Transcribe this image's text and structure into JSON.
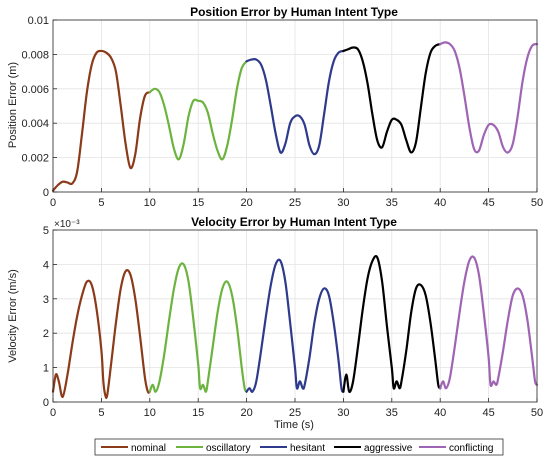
{
  "chart_data": [
    {
      "type": "line",
      "title": "Position Error by Human Intent Type",
      "xlabel": "",
      "ylabel": "Position Error (m)",
      "xlim": [
        0,
        50
      ],
      "ylim": [
        0,
        0.01
      ],
      "xticks": [
        0,
        5,
        10,
        15,
        20,
        25,
        30,
        35,
        40,
        45,
        50
      ],
      "xtick_labels": [
        "0",
        "5",
        "10",
        "15",
        "20",
        "25",
        "30",
        "35",
        "40",
        "45",
        "50"
      ],
      "yticks": [
        0,
        0.002,
        0.004,
        0.006,
        0.008,
        0.01
      ],
      "ytick_labels": [
        "0",
        "0.002",
        "0.004",
        "0.006",
        "0.008",
        "0.01"
      ],
      "grid": true,
      "series": [
        {
          "color": "#8B3A1A",
          "x": [
            0,
            0.5,
            1,
            1.5,
            2,
            2.5,
            3,
            3.5,
            4,
            4.5,
            5,
            5.5,
            6,
            6.5,
            7,
            7.5,
            8,
            8.5,
            9,
            9.5,
            10
          ],
          "y": [
            8e-05,
            0.0004,
            0.0006,
            0.00055,
            0.0005,
            0.0012,
            0.0034,
            0.0058,
            0.0074,
            0.0081,
            0.0082,
            0.0081,
            0.0078,
            0.007,
            0.005,
            0.0028,
            0.0014,
            0.0022,
            0.0043,
            0.0056,
            0.0058
          ]
        },
        {
          "color": "#6DB33F",
          "x": [
            10,
            10.5,
            11,
            11.5,
            12,
            12.5,
            13,
            13.5,
            14,
            14.5,
            15,
            15.5,
            16,
            16.5,
            17,
            17.5,
            18,
            18.5,
            19,
            19.5,
            20
          ],
          "y": [
            0.0058,
            0.006,
            0.0058,
            0.005,
            0.0038,
            0.0025,
            0.0019,
            0.0028,
            0.0044,
            0.0053,
            0.0053,
            0.0052,
            0.0046,
            0.0034,
            0.0024,
            0.0019,
            0.0027,
            0.0042,
            0.006,
            0.0072,
            0.0076
          ]
        },
        {
          "color": "#2E3A8C",
          "x": [
            20,
            20.5,
            21,
            21.5,
            22,
            22.5,
            23,
            23.5,
            24,
            24.5,
            25,
            25.5,
            26,
            26.5,
            27,
            27.5,
            28,
            28.5,
            29,
            29.5,
            30
          ],
          "y": [
            0.0076,
            0.0077,
            0.0077,
            0.0074,
            0.0065,
            0.005,
            0.0034,
            0.0023,
            0.0028,
            0.004,
            0.0044,
            0.0044,
            0.0039,
            0.0027,
            0.0022,
            0.0027,
            0.0045,
            0.0064,
            0.0076,
            0.0081,
            0.0082
          ]
        },
        {
          "color": "#000000",
          "x": [
            30,
            30.5,
            31,
            31.5,
            32,
            32.5,
            33,
            33.5,
            34,
            34.5,
            35,
            35.5,
            36,
            36.5,
            37,
            37.5,
            38,
            38.5,
            39,
            39.5,
            40
          ],
          "y": [
            0.0082,
            0.0083,
            0.0084,
            0.0083,
            0.0076,
            0.0063,
            0.0045,
            0.003,
            0.0026,
            0.0035,
            0.0042,
            0.0042,
            0.0039,
            0.003,
            0.0023,
            0.0029,
            0.0049,
            0.0069,
            0.0081,
            0.0085,
            0.0086
          ]
        },
        {
          "color": "#A064B4",
          "x": [
            40,
            40.5,
            41,
            41.5,
            42,
            42.5,
            43,
            43.5,
            44,
            44.5,
            45,
            45.5,
            46,
            46.5,
            47,
            47.5,
            48,
            48.5,
            49,
            49.5,
            50
          ],
          "y": [
            0.0086,
            0.0087,
            0.0086,
            0.0082,
            0.0072,
            0.0056,
            0.0038,
            0.0025,
            0.0024,
            0.0033,
            0.0039,
            0.0039,
            0.0035,
            0.0026,
            0.0023,
            0.0028,
            0.0044,
            0.0064,
            0.0078,
            0.0085,
            0.0086
          ]
        }
      ]
    },
    {
      "type": "line",
      "title": "Velocity Error by Human Intent Type",
      "xlabel": "Time (s)",
      "ylabel": "Velocity Error (m/s)",
      "scale_label": "×10⁻³",
      "xlim": [
        0,
        50
      ],
      "ylim": [
        0,
        0.005
      ],
      "xticks": [
        0,
        5,
        10,
        15,
        20,
        25,
        30,
        35,
        40,
        45,
        50
      ],
      "xtick_labels": [
        "0",
        "5",
        "10",
        "15",
        "20",
        "25",
        "30",
        "35",
        "40",
        "45",
        "50"
      ],
      "yticks": [
        0,
        0.001,
        0.002,
        0.003,
        0.004,
        0.005
      ],
      "ytick_labels": [
        "0",
        "1",
        "2",
        "3",
        "4",
        "5"
      ],
      "grid": true,
      "series": [
        {
          "color": "#8B3A1A",
          "x": [
            0,
            0.3,
            0.6,
            1,
            1.5,
            2,
            2.5,
            3,
            3.5,
            4,
            4.5,
            5,
            5.2,
            5.4,
            5.6,
            6,
            6.5,
            7,
            7.5,
            8,
            8.5,
            9,
            9.5,
            9.8,
            10
          ],
          "y": [
            0.0003,
            0.0008,
            0.0006,
            0.00015,
            0.0008,
            0.0017,
            0.0025,
            0.0031,
            0.0035,
            0.0034,
            0.0027,
            0.0015,
            0.0006,
            0.0002,
            0.0002,
            0.0011,
            0.0023,
            0.0033,
            0.0038,
            0.0037,
            0.003,
            0.0019,
            0.0007,
            0.0003,
            0.0003
          ]
        },
        {
          "color": "#6DB33F",
          "x": [
            10,
            10.3,
            10.6,
            11,
            11.5,
            12,
            12.5,
            13,
            13.5,
            14,
            14.5,
            15,
            15.2,
            15.5,
            15.8,
            16,
            16.5,
            17,
            17.5,
            18,
            18.5,
            19,
            19.5,
            19.8,
            20
          ],
          "y": [
            0.0003,
            0.0005,
            0.0003,
            0.0006,
            0.0014,
            0.0024,
            0.0033,
            0.0039,
            0.004,
            0.0035,
            0.0024,
            0.0011,
            0.0004,
            0.0005,
            0.0003,
            0.0006,
            0.0016,
            0.0026,
            0.0033,
            0.0035,
            0.0031,
            0.0022,
            0.001,
            0.0004,
            0.0003
          ]
        },
        {
          "color": "#2E3A8C",
          "x": [
            20,
            20.3,
            20.6,
            21,
            21.5,
            22,
            22.5,
            23,
            23.5,
            24,
            24.5,
            25,
            25.2,
            25.5,
            25.8,
            26,
            26.5,
            27,
            27.5,
            28,
            28.5,
            29,
            29.5,
            29.8,
            30
          ],
          "y": [
            0.0003,
            0.0004,
            0.0003,
            0.0006,
            0.0015,
            0.0025,
            0.0034,
            0.004,
            0.0041,
            0.0035,
            0.0023,
            0.001,
            0.0004,
            0.0006,
            0.0004,
            0.0005,
            0.0013,
            0.0023,
            0.003,
            0.0033,
            0.0031,
            0.0023,
            0.0012,
            0.0004,
            0.0003
          ]
        },
        {
          "color": "#000000",
          "x": [
            30,
            30.3,
            30.6,
            31,
            31.5,
            32,
            32.5,
            33,
            33.5,
            34,
            34.5,
            35,
            35.2,
            35.5,
            35.8,
            36,
            36.5,
            37,
            37.5,
            38,
            38.5,
            39,
            39.5,
            39.8,
            40
          ],
          "y": [
            0.0003,
            0.0008,
            0.0003,
            0.0006,
            0.0016,
            0.0027,
            0.0036,
            0.0041,
            0.0042,
            0.0035,
            0.0022,
            0.001,
            0.0004,
            0.0006,
            0.0004,
            0.0006,
            0.0015,
            0.0026,
            0.0033,
            0.0034,
            0.0031,
            0.0023,
            0.0012,
            0.0005,
            0.0004
          ]
        },
        {
          "color": "#A064B4",
          "x": [
            40,
            40.3,
            40.6,
            41,
            41.5,
            42,
            42.5,
            43,
            43.5,
            44,
            44.5,
            45,
            45.2,
            45.5,
            45.8,
            46,
            46.5,
            47,
            47.5,
            48,
            48.5,
            49,
            49.5,
            49.8,
            50
          ],
          "y": [
            0.0004,
            0.0006,
            0.0004,
            0.0007,
            0.0016,
            0.0026,
            0.0035,
            0.0041,
            0.0042,
            0.0037,
            0.0026,
            0.0013,
            0.0005,
            0.0006,
            0.0005,
            0.0007,
            0.0015,
            0.0024,
            0.0031,
            0.0033,
            0.0031,
            0.0024,
            0.0013,
            0.0006,
            0.0005
          ]
        }
      ]
    }
  ],
  "legend": {
    "placement": "bottom",
    "entries": [
      {
        "label": "nominal",
        "color": "#8B3A1A"
      },
      {
        "label": "oscillatory",
        "color": "#6DB33F"
      },
      {
        "label": "hesitant",
        "color": "#2E3A8C"
      },
      {
        "label": "aggressive",
        "color": "#000000"
      },
      {
        "label": "conflicting",
        "color": "#A064B4"
      }
    ]
  }
}
